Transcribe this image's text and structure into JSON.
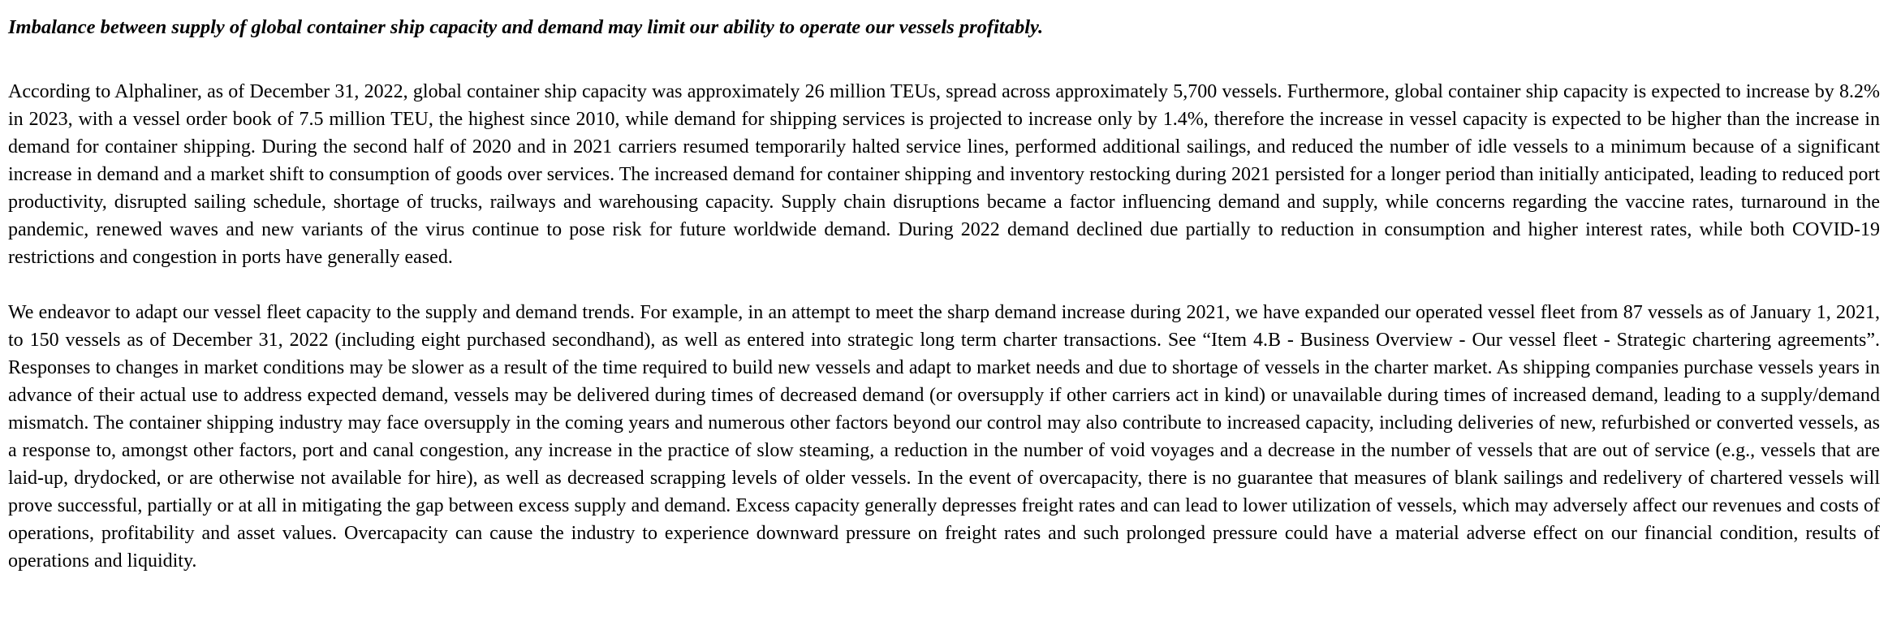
{
  "document": {
    "heading": "Imbalance between supply of global container ship capacity and demand may limit our ability to operate our vessels profitably.",
    "paragraphs": [
      "According to Alphaliner, as of December 31, 2022, global container ship capacity was approximately 26 million TEUs, spread across approximately 5,700 vessels. Furthermore, global container ship capacity is expected to increase by 8.2% in 2023, with a vessel order book of 7.5 million TEU, the highest since 2010, while demand for shipping services is projected to increase only by 1.4%, therefore the increase in vessel capacity is expected to be higher than the increase in demand for container shipping. During the second half of 2020 and in 2021 carriers resumed temporarily halted service lines, performed additional sailings, and reduced the number of idle vessels to a minimum because of a significant increase in demand and a market shift to consumption of goods over services. The increased demand for container shipping and inventory restocking during 2021 persisted for a longer period than initially anticipated, leading to reduced port productivity, disrupted sailing schedule, shortage of trucks, railways and warehousing capacity. Supply chain disruptions became a factor influencing demand and supply, while concerns regarding the vaccine rates, turnaround in the pandemic, renewed waves and new variants of the virus continue to pose risk for future worldwide demand. During 2022 demand declined due partially to reduction in consumption and higher interest rates, while both COVID-19 restrictions and congestion in ports have generally eased.",
      "We endeavor to adapt our vessel fleet capacity to the supply and demand trends. For example, in an attempt to meet the sharp demand increase during 2021, we have expanded our operated vessel fleet from 87 vessels as of January 1, 2021, to 150 vessels as of December 31, 2022 (including eight purchased secondhand), as well as entered into strategic long term charter transactions. See “Item 4.B - Business Overview - Our vessel fleet - Strategic chartering agreements”. Responses to changes in market conditions may be slower as a result of the time required to build new vessels and adapt to market needs and due to shortage of vessels in the charter market. As shipping companies purchase vessels years in advance of their actual use to address expected demand, vessels may be delivered during times of decreased demand (or oversupply if other carriers act in kind) or unavailable during times of increased demand, leading to a supply/demand mismatch. The container shipping industry may face oversupply in the coming years and numerous other factors beyond our control may also contribute to increased capacity, including deliveries of new, refurbished or converted vessels, as a response to, amongst other factors, port and canal congestion, any increase in the practice of slow steaming, a reduction in the number of void voyages and a decrease in the number of vessels that are out of service (e.g., vessels that are laid-up, drydocked, or are otherwise not available for hire), as well as decreased scrapping levels of older vessels. In the event of overcapacity, there is no guarantee that measures of blank sailings and redelivery of chartered vessels will prove successful, partially or at all in mitigating the gap between excess supply and demand. Excess capacity generally depresses freight rates and can lead to lower utilization of vessels, which may adversely affect our revenues and costs of operations, profitability and asset values. Overcapacity can cause the industry to experience downward pressure on freight rates and such prolonged pressure could have a material adverse effect on our financial condition, results of operations and liquidity."
    ]
  }
}
